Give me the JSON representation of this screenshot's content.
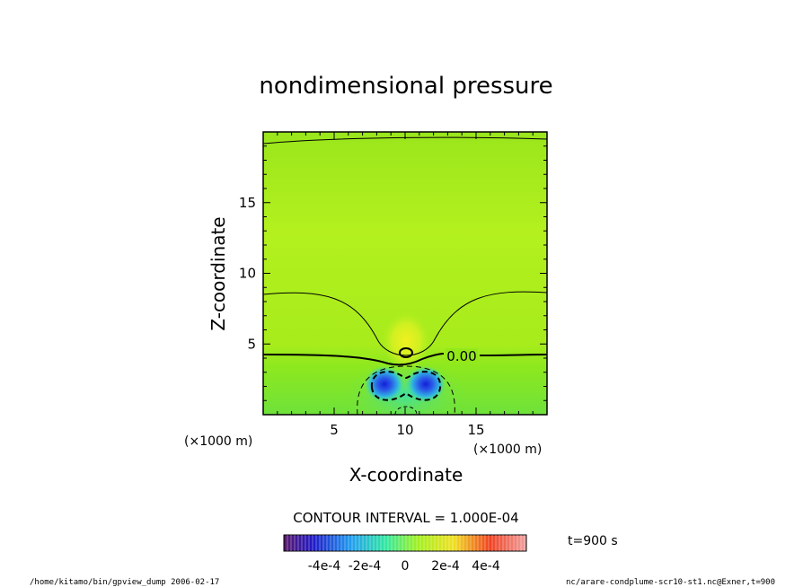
{
  "chart_data": {
    "type": "heatmap",
    "title": "nondimensional pressure",
    "xlabel": "X-coordinate",
    "ylabel": "Z-coordinate",
    "x_unit_label": "(×1000 m)",
    "z_unit_label": "(×1000 m)",
    "xlim": [
      0,
      20
    ],
    "ylim": [
      0,
      20
    ],
    "x_ticks": [
      5,
      10,
      15
    ],
    "y_ticks": [
      5,
      10,
      15
    ],
    "x_tick_labels": [
      "5",
      "10",
      "15"
    ],
    "y_tick_labels": [
      "5",
      "10",
      "15"
    ],
    "contour_label": "0.00",
    "contour_interval_text": "CONTOUR INTERVAL = 1.000E-04",
    "time_text": "t=900 s",
    "colorbar": {
      "range": [
        -0.0006,
        0.0006
      ],
      "tick_labels": [
        "-4e-4",
        "-2e-4",
        "0",
        "2e-4",
        "4e-4"
      ],
      "tick_values": [
        -0.0004,
        -0.0002,
        0,
        0.0002,
        0.0004
      ]
    },
    "features": [
      {
        "kind": "low",
        "x": 8.6,
        "z": 2.0
      },
      {
        "kind": "low",
        "x": 11.3,
        "z": 2.0
      },
      {
        "kind": "high",
        "x": 10.0,
        "z": 4.6
      }
    ],
    "grid": false
  },
  "footer": {
    "left": "/home/kitamo/bin/gpview_dump  2006-02-17",
    "right": "nc/arare-condplume-scr10-st1.nc@Exner,t=900"
  },
  "colors": {
    "background": "#93e81a",
    "upper": "#b3f01e",
    "low": "#1c2edc",
    "high": "#dcf020"
  }
}
